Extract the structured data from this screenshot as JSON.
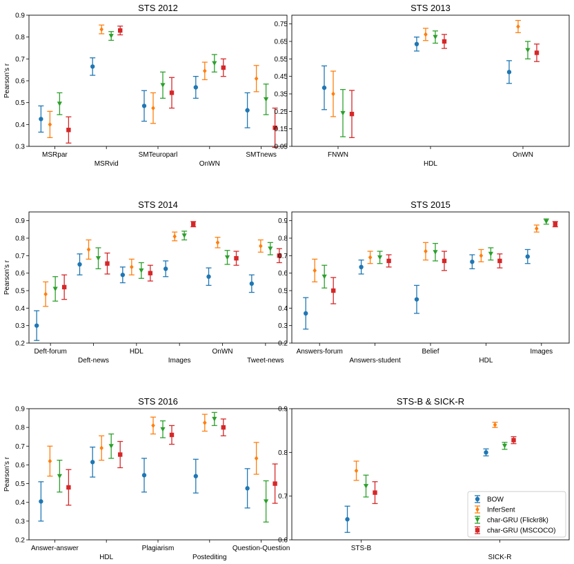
{
  "figure": {
    "legend": [
      {
        "label": "BOW",
        "color": "#1f77b4",
        "marker": "circle"
      },
      {
        "label": "InferSent",
        "color": "#ff7f0e",
        "marker": "diamond"
      },
      {
        "label": "char-GRU (Flickr8k)",
        "color": "#2ca02c",
        "marker": "triangle-down"
      },
      {
        "label": "char-GRU (MSCOCO)",
        "color": "#d62728",
        "marker": "square"
      }
    ],
    "legend_location": "lower-right"
  },
  "chart_data": [
    {
      "type": "scatter",
      "title": "STS 2012",
      "ylabel": "Pearson's r",
      "ylim": [
        0.3,
        0.9
      ],
      "yticks": [
        0.3,
        0.4,
        0.5,
        0.6,
        0.7,
        0.8,
        0.9
      ],
      "ytick_labels": [
        "0.3",
        "0.4",
        "0.5",
        "0.6",
        "0.7",
        "0.8",
        "0.9"
      ],
      "categories": [
        "MSRpar",
        "MSRvid",
        "SMTeuroparl",
        "OnWN",
        "SMTnews"
      ],
      "series": [
        {
          "name": "BOW",
          "values": [
            0.425,
            0.665,
            0.485,
            0.57,
            0.465
          ],
          "err": [
            0.06,
            0.04,
            0.07,
            0.05,
            0.08
          ]
        },
        {
          "name": "InferSent",
          "values": [
            0.4,
            0.835,
            0.475,
            0.645,
            0.61
          ],
          "err": [
            0.06,
            0.02,
            0.07,
            0.04,
            0.06
          ]
        },
        {
          "name": "char-GRU (Flickr8k)",
          "values": [
            0.495,
            0.805,
            0.58,
            0.68,
            0.515
          ],
          "err": [
            0.05,
            0.02,
            0.06,
            0.04,
            0.07
          ]
        },
        {
          "name": "char-GRU (MSCOCO)",
          "values": [
            0.375,
            0.83,
            0.545,
            0.66,
            0.385
          ],
          "err": [
            0.06,
            0.02,
            0.07,
            0.04,
            0.09
          ]
        }
      ]
    },
    {
      "type": "scatter",
      "title": "STS 2013",
      "ylabel": "",
      "ylim": [
        0.05,
        0.8
      ],
      "yticks": [
        0.05,
        0.15,
        0.25,
        0.35,
        0.45,
        0.55,
        0.65,
        0.75
      ],
      "ytick_labels": [
        "0.05",
        "0.15",
        "0.25",
        "0.35",
        "0.45",
        "0.55",
        "0.65",
        "0.75"
      ],
      "categories": [
        "FNWN",
        "HDL",
        "OnWN"
      ],
      "series": [
        {
          "name": "BOW",
          "values": [
            0.385,
            0.635,
            0.475
          ],
          "err": [
            0.125,
            0.04,
            0.065
          ]
        },
        {
          "name": "InferSent",
          "values": [
            0.35,
            0.69,
            0.735
          ],
          "err": [
            0.13,
            0.035,
            0.035
          ]
        },
        {
          "name": "char-GRU (Flickr8k)",
          "values": [
            0.24,
            0.675,
            0.6
          ],
          "err": [
            0.135,
            0.035,
            0.05
          ]
        },
        {
          "name": "char-GRU (MSCOCO)",
          "values": [
            0.235,
            0.65,
            0.585
          ],
          "err": [
            0.135,
            0.04,
            0.05
          ]
        }
      ]
    },
    {
      "type": "scatter",
      "title": "STS 2014",
      "ylabel": "Pearson's r",
      "ylim": [
        0.2,
        0.95
      ],
      "yticks": [
        0.2,
        0.3,
        0.4,
        0.5,
        0.6,
        0.7,
        0.8,
        0.9
      ],
      "ytick_labels": [
        "0.2",
        "0.3",
        "0.4",
        "0.5",
        "0.6",
        "0.7",
        "0.8",
        "0.9"
      ],
      "categories": [
        "Deft-forum",
        "Deft-news",
        "HDL",
        "Images",
        "OnWN",
        "Tweet-news"
      ],
      "series": [
        {
          "name": "BOW",
          "values": [
            0.3,
            0.65,
            0.59,
            0.625,
            0.58,
            0.54
          ],
          "err": [
            0.085,
            0.06,
            0.045,
            0.045,
            0.05,
            0.05
          ]
        },
        {
          "name": "InferSent",
          "values": [
            0.48,
            0.735,
            0.635,
            0.81,
            0.775,
            0.755
          ],
          "err": [
            0.07,
            0.055,
            0.045,
            0.025,
            0.03,
            0.035
          ]
        },
        {
          "name": "char-GRU (Flickr8k)",
          "values": [
            0.51,
            0.685,
            0.615,
            0.815,
            0.69,
            0.74
          ],
          "err": [
            0.07,
            0.06,
            0.045,
            0.025,
            0.04,
            0.035
          ]
        },
        {
          "name": "char-GRU (MSCOCO)",
          "values": [
            0.52,
            0.655,
            0.6,
            0.88,
            0.685,
            0.7
          ],
          "err": [
            0.07,
            0.06,
            0.045,
            0.015,
            0.04,
            0.04
          ]
        }
      ]
    },
    {
      "type": "scatter",
      "title": "STS 2015",
      "ylabel": "",
      "ylim": [
        0.2,
        0.95
      ],
      "yticks": [
        0.2,
        0.3,
        0.4,
        0.5,
        0.6,
        0.7,
        0.8,
        0.9
      ],
      "ytick_labels": [
        "0.2",
        "0.3",
        "0.4",
        "0.5",
        "0.6",
        "0.7",
        "0.8",
        "0.9"
      ],
      "categories": [
        "Answers-forum",
        "Answers-student",
        "Belief",
        "HDL",
        "Images"
      ],
      "series": [
        {
          "name": "BOW",
          "values": [
            0.37,
            0.635,
            0.45,
            0.665,
            0.695
          ],
          "err": [
            0.09,
            0.04,
            0.08,
            0.04,
            0.04
          ]
        },
        {
          "name": "InferSent",
          "values": [
            0.615,
            0.69,
            0.725,
            0.7,
            0.855
          ],
          "err": [
            0.065,
            0.035,
            0.05,
            0.035,
            0.02
          ]
        },
        {
          "name": "char-GRU (Flickr8k)",
          "values": [
            0.58,
            0.69,
            0.72,
            0.71,
            0.895
          ],
          "err": [
            0.065,
            0.035,
            0.05,
            0.035,
            0.015
          ]
        },
        {
          "name": "char-GRU (MSCOCO)",
          "values": [
            0.5,
            0.67,
            0.67,
            0.67,
            0.88
          ],
          "err": [
            0.075,
            0.035,
            0.055,
            0.04,
            0.015
          ]
        }
      ]
    },
    {
      "type": "scatter",
      "title": "STS 2016",
      "ylabel": "Pearson's r",
      "ylim": [
        0.2,
        0.9
      ],
      "yticks": [
        0.2,
        0.3,
        0.4,
        0.5,
        0.6,
        0.7,
        0.8,
        0.9
      ],
      "ytick_labels": [
        "0.2",
        "0.3",
        "0.4",
        "0.5",
        "0.6",
        "0.7",
        "0.8",
        "0.9"
      ],
      "categories": [
        "Answer-answer",
        "HDL",
        "Plagiarism",
        "Postediting",
        "Question-Question"
      ],
      "series": [
        {
          "name": "BOW",
          "values": [
            0.405,
            0.615,
            0.545,
            0.54,
            0.475
          ],
          "err": [
            0.105,
            0.08,
            0.09,
            0.09,
            0.105
          ]
        },
        {
          "name": "InferSent",
          "values": [
            0.62,
            0.69,
            0.81,
            0.825,
            0.635
          ],
          "err": [
            0.08,
            0.065,
            0.045,
            0.045,
            0.085
          ]
        },
        {
          "name": "char-GRU (Flickr8k)",
          "values": [
            0.54,
            0.7,
            0.79,
            0.845,
            0.405
          ],
          "err": [
            0.085,
            0.065,
            0.045,
            0.035,
            0.11
          ]
        },
        {
          "name": "char-GRU (MSCOCO)",
          "values": [
            0.48,
            0.655,
            0.76,
            0.8,
            0.5
          ],
          "err": [
            0.095,
            0.07,
            0.05,
            0.045,
            0.105
          ]
        }
      ]
    },
    {
      "type": "scatter",
      "title": "STS-B & SICK-R",
      "ylabel": "",
      "ylim": [
        0.6,
        0.9
      ],
      "yticks": [
        0.6,
        0.7,
        0.8,
        0.9
      ],
      "ytick_labels": [
        "0.6",
        "0.7",
        "0.8",
        "0.9"
      ],
      "categories": [
        "STS-B",
        "SICK-R"
      ],
      "series": [
        {
          "name": "BOW",
          "values": [
            0.647,
            0.8
          ],
          "err": [
            0.03,
            0.008
          ]
        },
        {
          "name": "InferSent",
          "values": [
            0.758,
            0.863
          ],
          "err": [
            0.022,
            0.006
          ]
        },
        {
          "name": "char-GRU (Flickr8k)",
          "values": [
            0.723,
            0.815
          ],
          "err": [
            0.025,
            0.008
          ]
        },
        {
          "name": "char-GRU (MSCOCO)",
          "values": [
            0.708,
            0.828
          ],
          "err": [
            0.025,
            0.008
          ]
        }
      ]
    }
  ]
}
